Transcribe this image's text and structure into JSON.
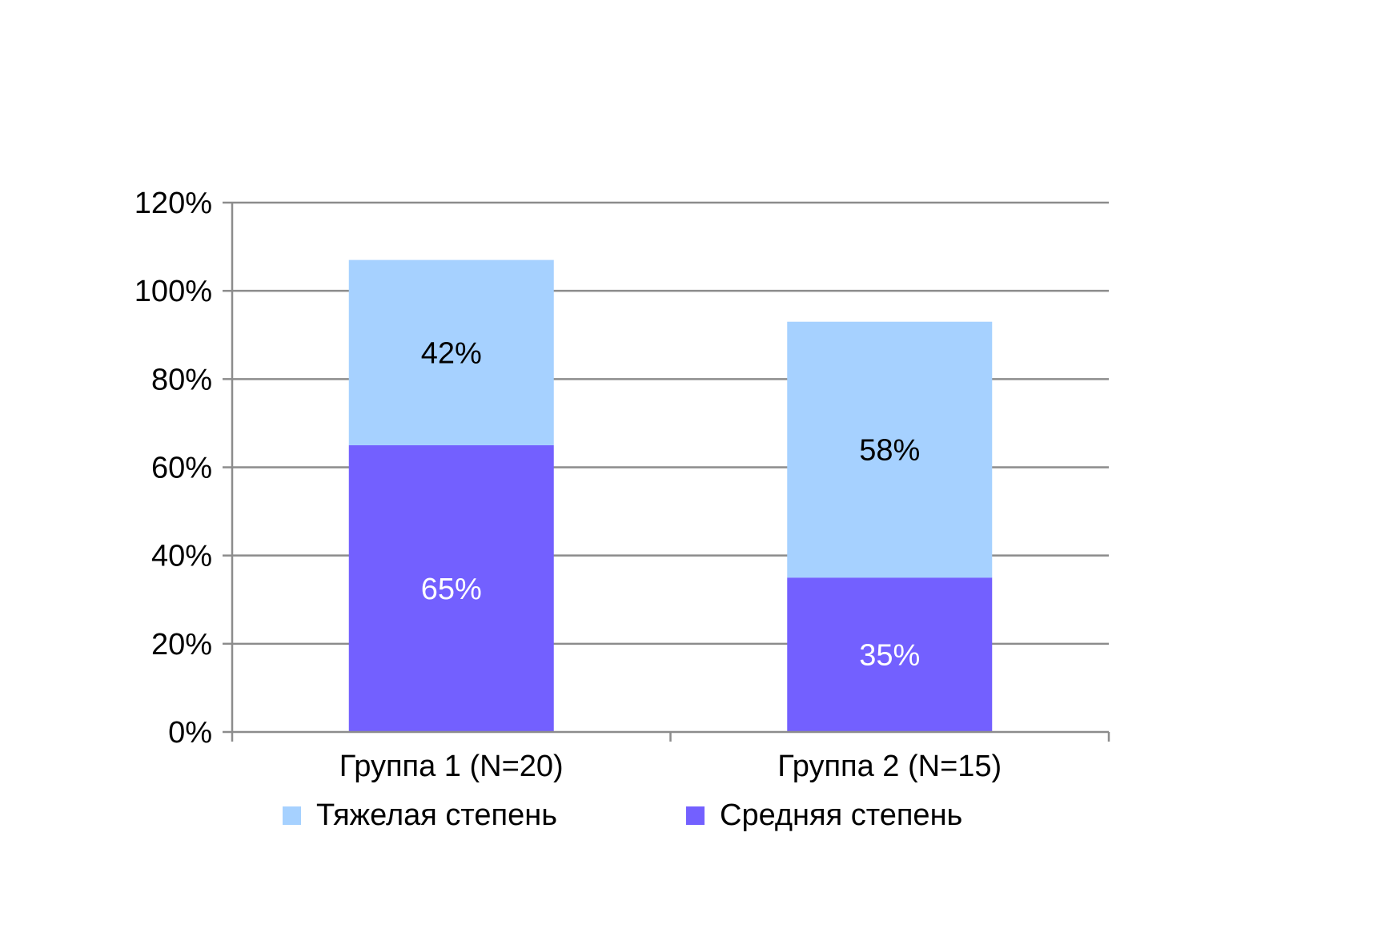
{
  "chart_data": {
    "type": "bar",
    "stacked": true,
    "categories": [
      "Группа 1 (N=20)",
      "Группа 2 (N=15)"
    ],
    "series": [
      {
        "name": "Средняя степень",
        "values": [
          65,
          35
        ],
        "labels": [
          "65%",
          "35%"
        ],
        "color": "#7360FF",
        "label_color": "#FFFFFF"
      },
      {
        "name": "Тяжелая степень",
        "values": [
          42,
          58
        ],
        "labels": [
          "42%",
          "58%"
        ],
        "color": "#A6D1FF",
        "label_color": "#000000"
      }
    ],
    "y_ticks": [
      "0%",
      "20%",
      "40%",
      "60%",
      "80%",
      "100%",
      "120%"
    ],
    "ylim": [
      0,
      120
    ],
    "grid": true,
    "legend": {
      "position": "bottom",
      "items": [
        {
          "name": "Тяжелая степень",
          "color": "#A6D1FF"
        },
        {
          "name": "Средняя степень",
          "color": "#7360FF"
        }
      ]
    },
    "title": "",
    "xlabel": "",
    "ylabel": ""
  }
}
